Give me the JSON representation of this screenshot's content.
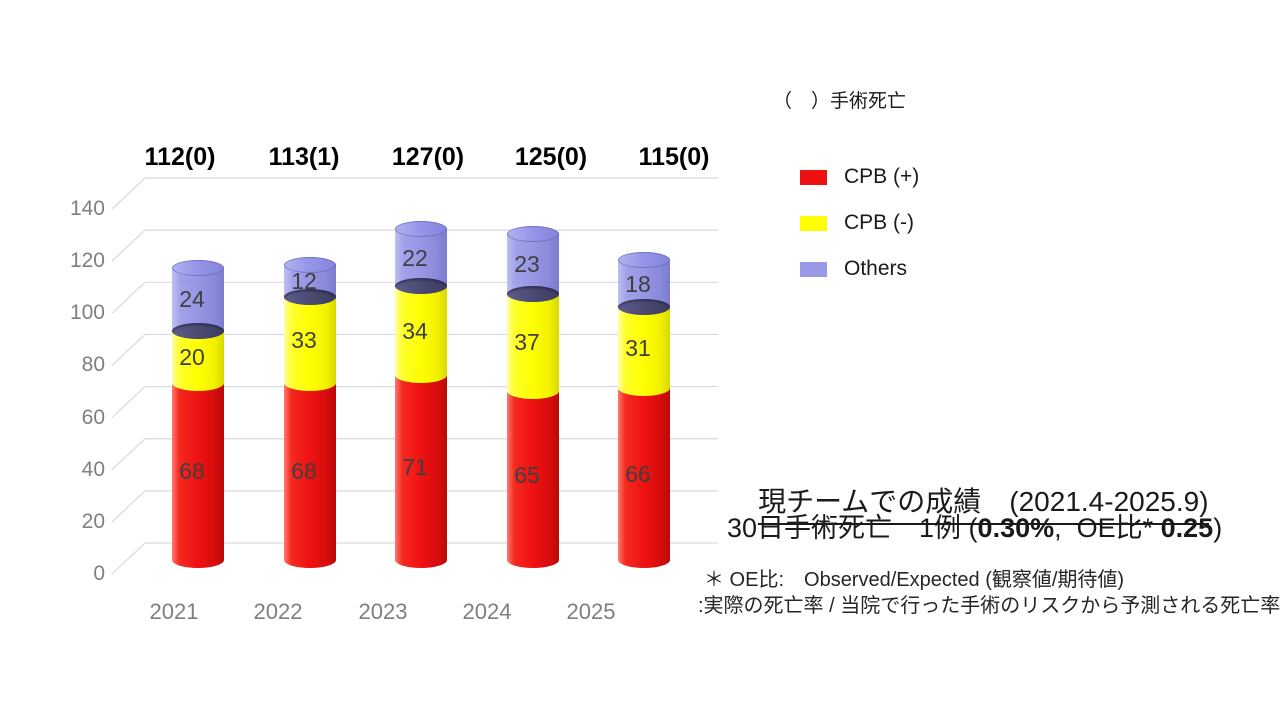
{
  "chart_data": {
    "type": "bar",
    "subtype": "3d-stacked-cylinder",
    "categories": [
      "2021",
      "2022",
      "2023",
      "2024",
      "2025"
    ],
    "series": [
      {
        "name": "CPB (+)",
        "color": "#ee1111",
        "values": [
          68,
          68,
          71,
          65,
          66
        ]
      },
      {
        "name": "CPB (-)",
        "color": "#ffff00",
        "values": [
          20,
          33,
          34,
          37,
          31
        ]
      },
      {
        "name": "Others",
        "color": "#9999e8",
        "values": [
          24,
          12,
          22,
          23,
          18
        ]
      }
    ],
    "totals": [
      112,
      113,
      127,
      125,
      115
    ],
    "total_labels": [
      "112(0)",
      "113(1)",
      "127(0)",
      "125(0)",
      "115(0)"
    ],
    "ylim": [
      0,
      140
    ],
    "yticks": [
      0,
      20,
      40,
      60,
      80,
      100,
      120,
      140
    ],
    "grid": true,
    "legend_position": "right",
    "xlabel": "",
    "ylabel": ""
  },
  "legend": {
    "note": "（　）手術死亡"
  },
  "annotation": {
    "title": "現チームでの成績　(2021.4-2025.9)",
    "line2": {
      "pre": "30日手術死亡　1例 (",
      "bold1": "0.30%",
      "mid": ",  OE比* ",
      "bold2": "0.25",
      "post": ")"
    },
    "footnote1": "＊ OE比:　Observed/Expected (観察値/期待値)",
    "footnote2": ":実際の死亡率 / 当院で行った手術のリスクから予測される死亡率"
  },
  "colors": {
    "axis_text": "#7f7f7f",
    "gridline": "#d9d9d9",
    "value_label": "#3f3f3f",
    "total_label": "#000000",
    "joint_ellipse": "#4c4c74",
    "background": "#ffffff"
  }
}
